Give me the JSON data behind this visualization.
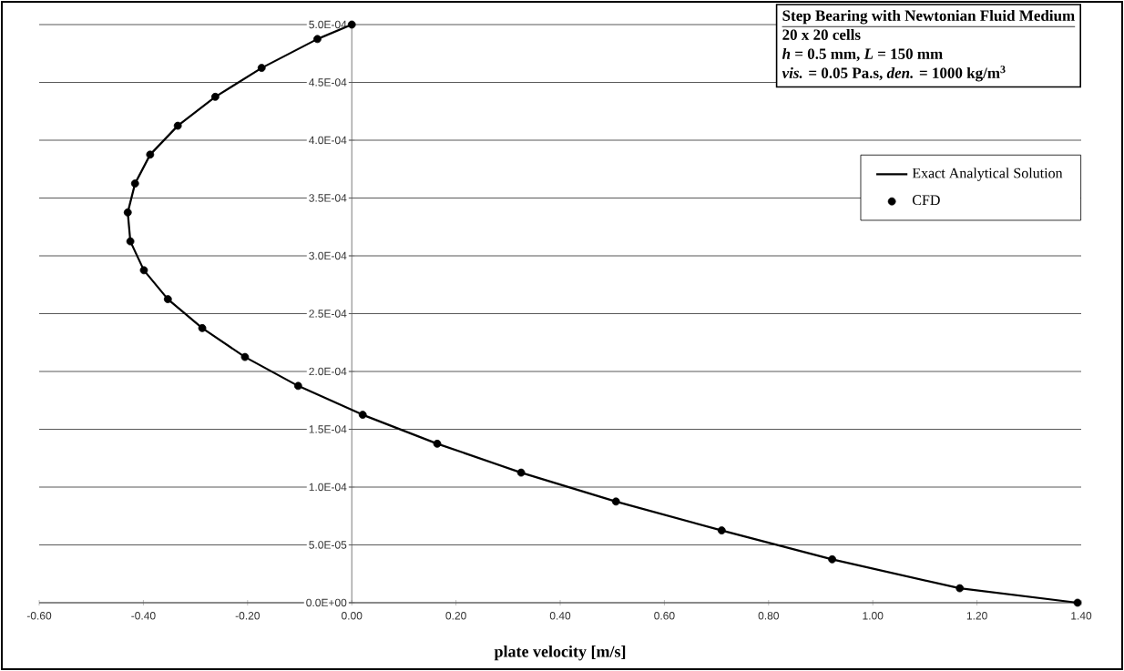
{
  "chart_data": {
    "type": "scatter",
    "title": "Step Bearing with Newtonian Fluid Medium",
    "annotations": [
      "20 x 20 cells",
      "*h* = 0.5 mm, *L* = 150 mm",
      "*vis.* = 0.05 Pa.s, *den.* = 1000 kg/m$^{3}$"
    ],
    "xlabel": "plate velocity [m/s]",
    "xlim": [
      -0.6,
      1.4
    ],
    "ylim": [
      0,
      0.0005
    ],
    "xticks": [
      {
        "value": -0.6,
        "label": "-0.60"
      },
      {
        "value": -0.4,
        "label": "-0.40"
      },
      {
        "value": -0.2,
        "label": "-0.20"
      },
      {
        "value": 0,
        "label": "0.00"
      },
      {
        "value": 0.2,
        "label": "0.20"
      },
      {
        "value": 0.4,
        "label": "0.40"
      },
      {
        "value": 0.6,
        "label": "0.60"
      },
      {
        "value": 0.8,
        "label": "0.80"
      },
      {
        "value": 1.0,
        "label": "1.00"
      },
      {
        "value": 1.2,
        "label": "1.20"
      },
      {
        "value": 1.4,
        "label": "1.40"
      }
    ],
    "yticks": [
      {
        "value": 0,
        "label": "0.0E+00"
      },
      {
        "value": 5e-05,
        "label": "5.0E-05"
      },
      {
        "value": 0.0001,
        "label": "1.0E-04"
      },
      {
        "value": 0.00015,
        "label": "1.5E-04"
      },
      {
        "value": 0.0002,
        "label": "2.0E-04"
      },
      {
        "value": 0.00025,
        "label": "2.5E-04"
      },
      {
        "value": 0.0003,
        "label": "3.0E-04"
      },
      {
        "value": 0.00035,
        "label": "3.5E-04"
      },
      {
        "value": 0.0004,
        "label": "4.0E-04"
      },
      {
        "value": 0.00045,
        "label": "4.5E-04"
      },
      {
        "value": 0.0005,
        "label": "5.0E-04"
      }
    ],
    "grid": "y",
    "legend": "top right",
    "series": [
      {
        "name": "Exact Analytical Solution",
        "type": "line",
        "marker": "none",
        "color": "#000000",
        "x": [
          0.0,
          -0.066,
          -0.173,
          -0.262,
          -0.334,
          -0.387,
          -0.416,
          -0.43,
          -0.425,
          -0.399,
          -0.353,
          -0.287,
          -0.205,
          -0.103,
          0.021,
          0.164,
          0.325,
          0.507,
          0.71,
          0.922,
          1.167,
          1.393
        ],
        "values": [
          0.0005,
          0.0004875,
          0.0004625,
          0.0004375,
          0.0004125,
          0.0003875,
          0.0003625,
          0.0003375,
          0.0003125,
          0.0002875,
          0.0002625,
          0.0002375,
          0.0002125,
          0.0001875,
          0.0001625,
          0.0001375,
          0.0001125,
          8.75e-05,
          6.25e-05,
          3.75e-05,
          1.25e-05,
          0.0
        ]
      },
      {
        "name": "CFD",
        "marker": "circle",
        "color": "#000000",
        "x": [
          0.0,
          -0.066,
          -0.173,
          -0.262,
          -0.334,
          -0.387,
          -0.416,
          -0.43,
          -0.425,
          -0.399,
          -0.353,
          -0.287,
          -0.205,
          -0.103,
          0.021,
          0.164,
          0.325,
          0.507,
          0.71,
          0.922,
          1.167,
          1.393
        ],
        "values": [
          0.0005,
          0.0004875,
          0.0004625,
          0.0004375,
          0.0004125,
          0.0003875,
          0.0003625,
          0.0003375,
          0.0003125,
          0.0002875,
          0.0002625,
          0.0002375,
          0.0002125,
          0.0001875,
          0.0001625,
          0.0001375,
          0.0001125,
          8.75e-05,
          6.25e-05,
          3.75e-05,
          1.25e-05,
          0.0
        ]
      }
    ]
  }
}
